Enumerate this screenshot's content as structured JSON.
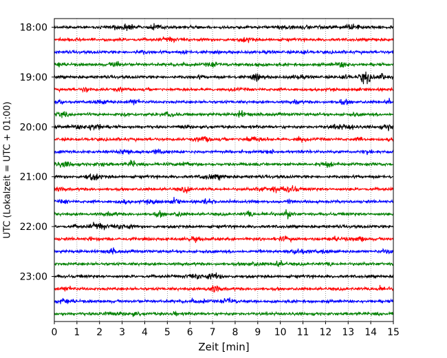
{
  "chart_data": {
    "type": "line",
    "title": "",
    "xlabel": "Zeit  [min]",
    "ylabel": "UTC (Lokalzeit = UTC + 01:00)",
    "xlim": [
      0,
      15
    ],
    "x_ticks": [
      0,
      1,
      2,
      3,
      4,
      5,
      6,
      7,
      8,
      9,
      10,
      11,
      12,
      13,
      14,
      15
    ],
    "x_tick_labels": [
      "0",
      "1",
      "2",
      "3",
      "4",
      "5",
      "6",
      "7",
      "8",
      "9",
      "10",
      "11",
      "12",
      "13",
      "14",
      "15"
    ],
    "y_tick_labels": [
      "18:00",
      "19:00",
      "20:00",
      "21:00",
      "22:00",
      "23:00"
    ],
    "vertical_grid": true,
    "traces": [
      {
        "start": "18:00",
        "color": "#000000"
      },
      {
        "start": "18:15",
        "color": "#ff0000"
      },
      {
        "start": "18:30",
        "color": "#0000ff"
      },
      {
        "start": "18:45",
        "color": "#008000"
      },
      {
        "start": "19:00",
        "color": "#000000"
      },
      {
        "start": "19:15",
        "color": "#ff0000"
      },
      {
        "start": "19:30",
        "color": "#0000ff"
      },
      {
        "start": "19:45",
        "color": "#008000"
      },
      {
        "start": "20:00",
        "color": "#000000"
      },
      {
        "start": "20:15",
        "color": "#ff0000"
      },
      {
        "start": "20:30",
        "color": "#0000ff"
      },
      {
        "start": "20:45",
        "color": "#008000"
      },
      {
        "start": "21:00",
        "color": "#000000"
      },
      {
        "start": "21:15",
        "color": "#ff0000"
      },
      {
        "start": "21:30",
        "color": "#0000ff"
      },
      {
        "start": "21:45",
        "color": "#008000"
      },
      {
        "start": "22:00",
        "color": "#000000"
      },
      {
        "start": "22:15",
        "color": "#ff0000"
      },
      {
        "start": "22:30",
        "color": "#0000ff"
      },
      {
        "start": "22:45",
        "color": "#008000"
      },
      {
        "start": "23:00",
        "color": "#000000"
      },
      {
        "start": "23:15",
        "color": "#ff0000"
      },
      {
        "start": "23:30",
        "color": "#0000ff"
      },
      {
        "start": "23:45",
        "color": "#008000"
      }
    ]
  }
}
